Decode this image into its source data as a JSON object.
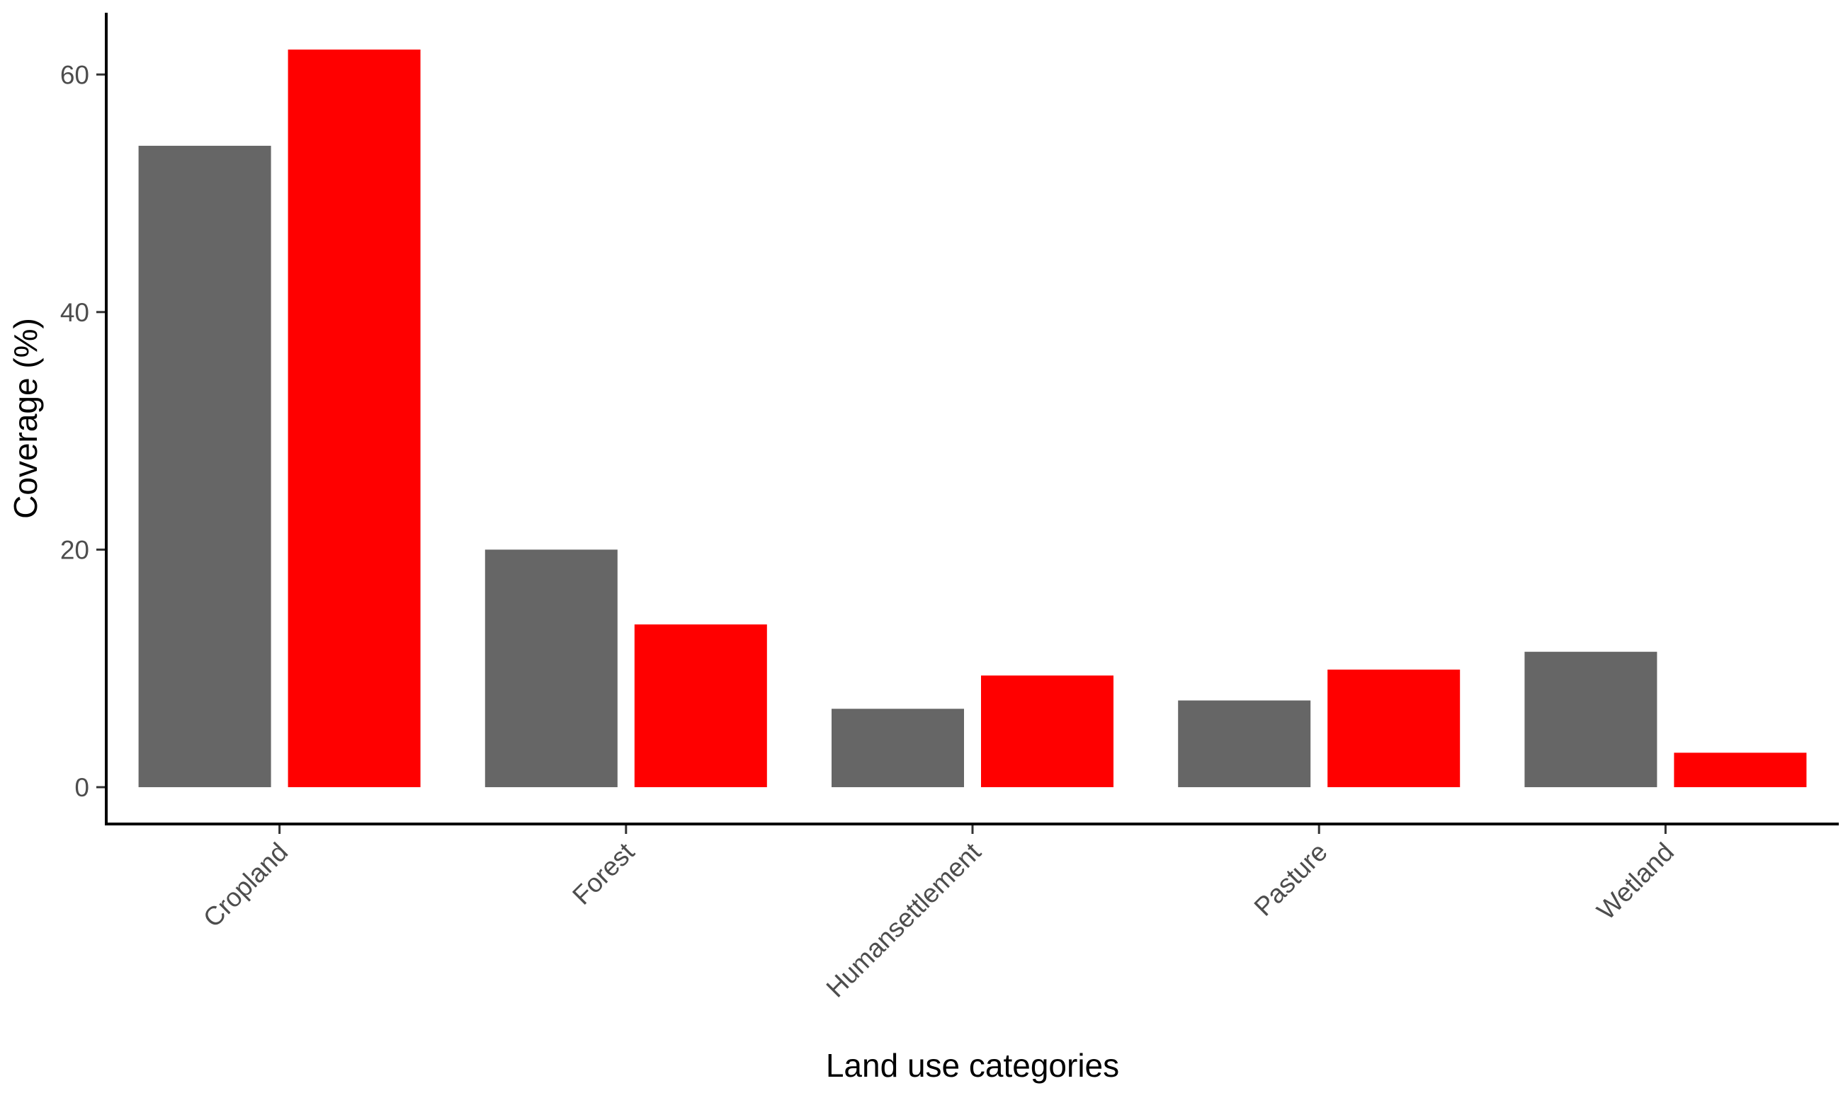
{
  "chart_data": {
    "type": "bar",
    "title": "",
    "xlabel": "Land use categories",
    "ylabel": "Coverage (%)",
    "categories": [
      "Cropland",
      "Forest",
      "Humansettlement",
      "Pasture",
      "Wetland"
    ],
    "series": [
      {
        "color": "#666666",
        "values": [
          54.0,
          20.0,
          6.6,
          7.3,
          11.4
        ]
      },
      {
        "color": "#ff0000",
        "values": [
          62.1,
          13.7,
          9.4,
          9.9,
          2.9
        ]
      }
    ],
    "ylim": [
      -3.1,
      65.2
    ],
    "yticks": [
      0,
      20,
      40,
      60
    ],
    "grid": false,
    "legend": "none"
  }
}
